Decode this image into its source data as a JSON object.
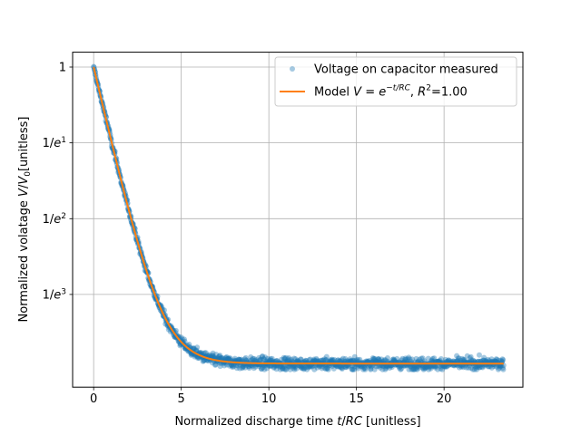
{
  "chart_data": {
    "type": "scatter",
    "xlabel_parts": [
      "Normalized discharge time ",
      "t",
      "/",
      "RC",
      " [unitless]"
    ],
    "ylabel_parts": [
      "Normalized volatage ",
      "V",
      "/",
      "V",
      "0",
      "[unitless]"
    ],
    "xlim": [
      -1.2,
      24.5
    ],
    "x_ticks": [
      0,
      5,
      10,
      15,
      20
    ],
    "x_tick_labels": [
      "0",
      "5",
      "10",
      "15",
      "20"
    ],
    "y_ticks": [
      {
        "label_parts": [
          "1"
        ],
        "value": 1.0
      },
      {
        "label_parts": [
          "1/",
          "e",
          "1"
        ],
        "value": 0.3679
      },
      {
        "label_parts": [
          "1/",
          "e",
          "2"
        ],
        "value": 0.1353
      },
      {
        "label_parts": [
          "1/",
          "e",
          "3"
        ],
        "value": 0.0498
      }
    ],
    "grid": true,
    "legend_position": "top-right",
    "series": [
      {
        "name_parts": [
          "Voltage on capacitor measured"
        ],
        "kind": "markers",
        "color": "#1f77b4",
        "alpha": 0.4,
        "x_range": [
          0,
          23.4
        ],
        "noise": 0.005
      },
      {
        "name_parts": [
          "Model ",
          "V",
          " = ",
          "e",
          "−t/RC",
          ", ",
          "R",
          "2",
          "=1.00"
        ],
        "kind": "line",
        "color": "#ff7f0e",
        "x_range": [
          0,
          23.4
        ]
      }
    ]
  }
}
